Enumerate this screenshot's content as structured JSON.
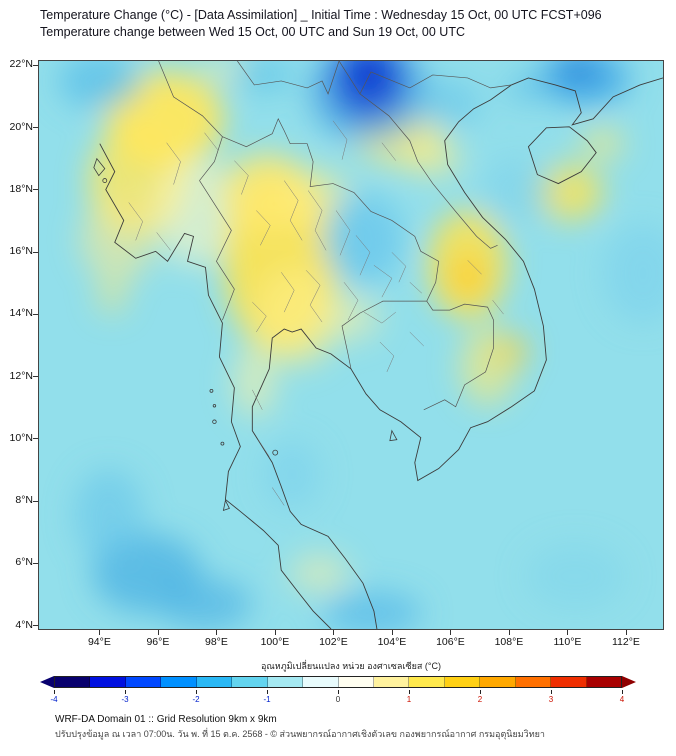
{
  "header": {
    "title_line1": "Temperature Change (°C) - [Data Assimilation] _ Initial Time : Wednesday 15 Oct, 00 UTC FCST+096",
    "title_line2": "Temperature change between Wed 15 Oct, 00 UTC and Sun 19 Oct, 00 UTC"
  },
  "map": {
    "lat_labels": [
      "22°N",
      "20°N",
      "18°N",
      "16°N",
      "14°N",
      "12°N",
      "10°N",
      "8°N",
      "6°N",
      "4°N"
    ],
    "lon_labels": [
      "94°E",
      "96°E",
      "98°E",
      "100°E",
      "102°E",
      "104°E",
      "106°E",
      "108°E",
      "110°E",
      "112°E"
    ],
    "background_color": "#92dfeb"
  },
  "colorbar": {
    "label": "อุณหภูมิเปลี่ยนแปลง หน่วย องศาเซลเซียส (°C)",
    "tick_labels": [
      "-4",
      "-3",
      "-2",
      "-1",
      "0",
      "1",
      "2",
      "3",
      "4"
    ],
    "segment_colors": [
      "#08006e",
      "#0010e0",
      "#0048ff",
      "#0090ff",
      "#2ab8f5",
      "#63d4ef",
      "#a5e9f2",
      "#e8fbfc",
      "#fffef0",
      "#fff29e",
      "#ffe94d",
      "#ffd014",
      "#ffa800",
      "#ff7000",
      "#ef2e00",
      "#a80000"
    ],
    "min_value": "-4",
    "max_value": "4",
    "negative_label_color": "#0020cc",
    "positive_label_color": "#cc1100"
  },
  "footer": {
    "line1": "WRF-DA Domain 01 :: Grid Resolution 9km x 9km",
    "line2": "ปรับปรุงข้อมูล ณ เวลา 07:00น. วัน พ. ที่ 15 ต.ค. 2568 - © ส่วนพยากรณ์อากาศเชิงตัวเลข กองพยากรณ์อากาศ กรมอุตุนิยมวิทยา"
  }
}
